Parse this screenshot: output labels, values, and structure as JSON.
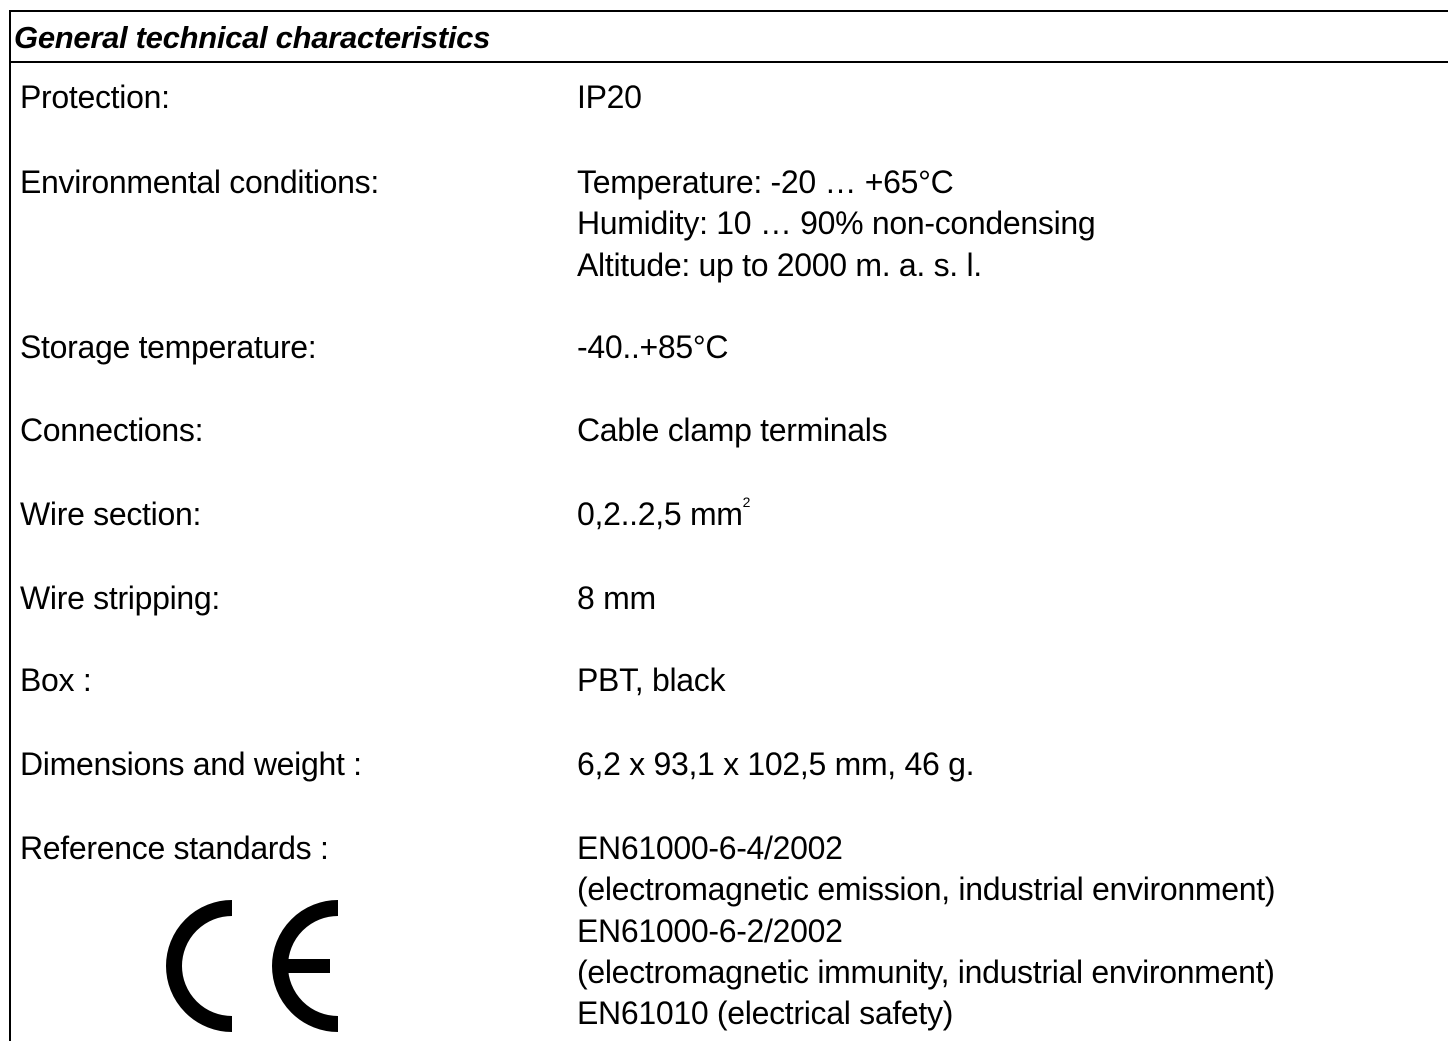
{
  "header": {
    "title": "General technical characteristics"
  },
  "rows": [
    {
      "label": "Protection:",
      "lines": [
        "IP20"
      ]
    },
    {
      "label": "Environmental conditions:",
      "lines": [
        "Temperature: -20 … +65°C",
        "Humidity: 10 … 90% non-condensing",
        "Altitude: up to 2000 m. a. s. l."
      ]
    },
    {
      "label": "Storage temperature:",
      "lines": [
        "-40..+85°C"
      ]
    },
    {
      "label": "Connections:",
      "lines": [
        "Cable clamp terminals"
      ]
    },
    {
      "label": "Wire section:",
      "lines": [
        "0,2..2,5 mm"
      ],
      "superscript": "2"
    },
    {
      "label": "Wire stripping:",
      "lines": [
        "8 mm"
      ]
    },
    {
      "label": "Box :",
      "lines": [
        "PBT, black"
      ]
    },
    {
      "label": "Dimensions and weight :",
      "lines": [
        "6,2 x 93,1 x 102,5 mm, 46 g."
      ]
    },
    {
      "label": "Reference standards :",
      "lines": [
        "EN61000-6-4/2002",
        "(electromagnetic emission, industrial environment)",
        "EN61000-6-2/2002",
        "(electromagnetic immunity, industrial environment)",
        "EN61010 (electrical safety)"
      ]
    }
  ]
}
